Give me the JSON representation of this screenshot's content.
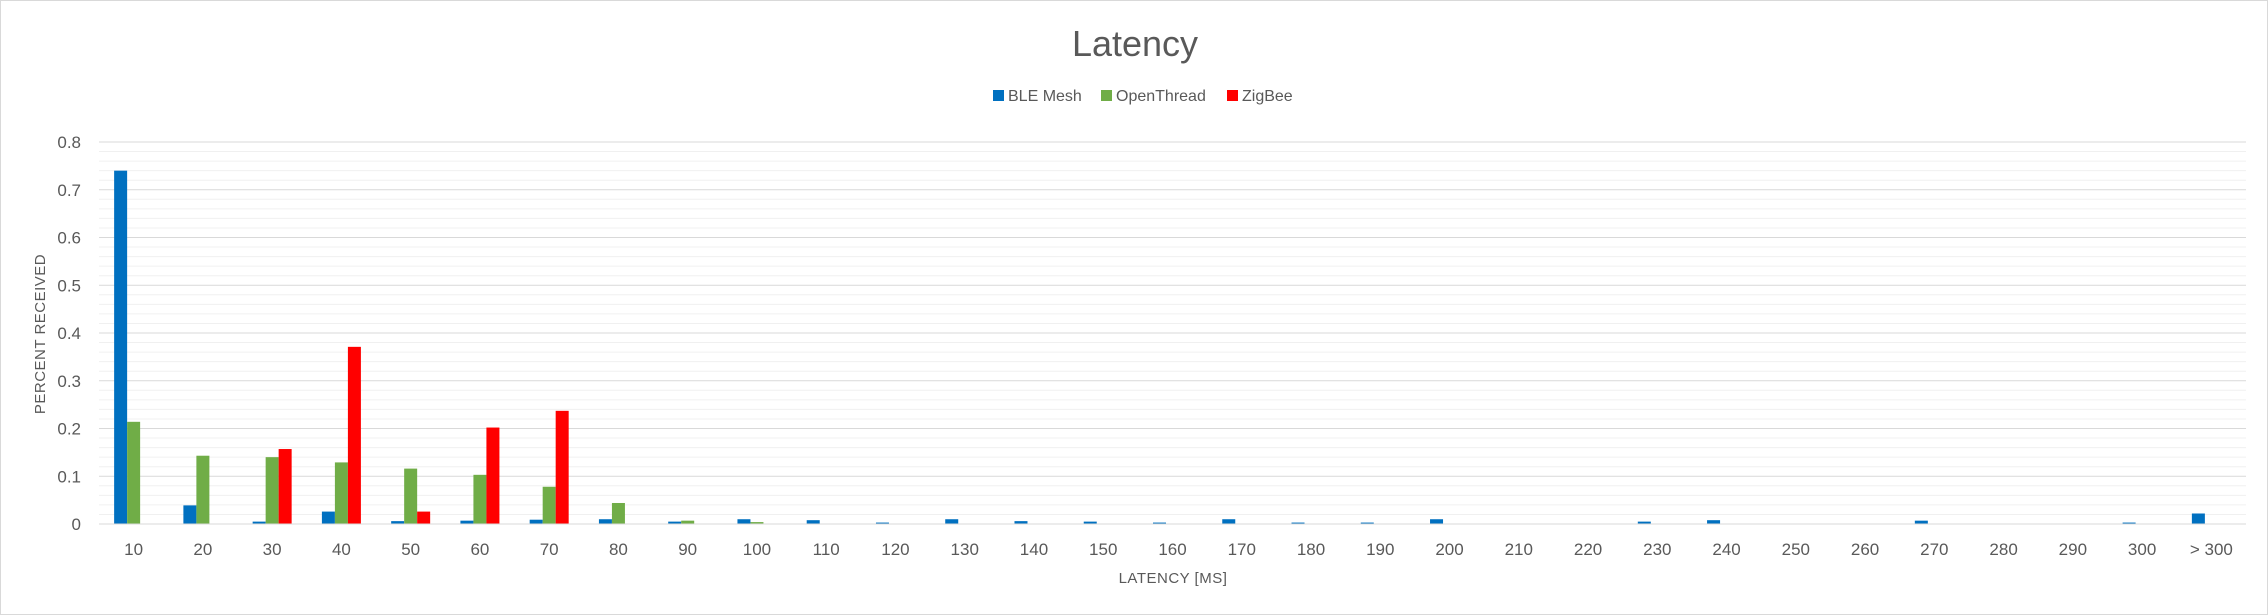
{
  "chart_data": {
    "type": "bar",
    "title": "Latency",
    "xlabel": "LATENCY [MS]",
    "ylabel": "PERCENT RECEIVED",
    "ylim": [
      0,
      0.8
    ],
    "yticks": [
      "0",
      "0.1",
      "0.2",
      "0.3",
      "0.4",
      "0.5",
      "0.6",
      "0.7",
      "0.8"
    ],
    "grid": "horizontal major and minor gridlines",
    "legend_position": "top",
    "categories": [
      "10",
      "20",
      "30",
      "40",
      "50",
      "60",
      "70",
      "80",
      "90",
      "100",
      "110",
      "120",
      "130",
      "140",
      "150",
      "160",
      "170",
      "180",
      "190",
      "200",
      "210",
      "220",
      "230",
      "240",
      "250",
      "260",
      "270",
      "280",
      "290",
      "300",
      "> 300"
    ],
    "series": [
      {
        "name": "BLE Mesh",
        "color": "#0070C0",
        "values": [
          0.74,
          0.039,
          0.005,
          0.026,
          0.006,
          0.007,
          0.009,
          0.01,
          0.005,
          0.01,
          0.008,
          0.003,
          0.01,
          0.006,
          0.005,
          0.003,
          0.01,
          0.003,
          0.003,
          0.01,
          0,
          0,
          0.005,
          0.008,
          0,
          0,
          0.007,
          0,
          0,
          0.003,
          0.022
        ]
      },
      {
        "name": "OpenThread",
        "color": "#70AD47",
        "values": [
          0.214,
          0.143,
          0.14,
          0.129,
          0.116,
          0.103,
          0.078,
          0.044,
          0.007,
          0.004,
          0,
          0,
          0,
          0,
          0,
          0,
          0,
          0,
          0,
          0,
          0,
          0,
          0,
          0,
          0,
          0,
          0,
          0,
          0,
          0,
          0
        ]
      },
      {
        "name": "ZigBee",
        "color": "#FF0000",
        "values": [
          0,
          0,
          0.157,
          0.371,
          0.026,
          0.202,
          0.237,
          0,
          0,
          0,
          0,
          0,
          0,
          0,
          0,
          0,
          0,
          0,
          0,
          0,
          0,
          0,
          0,
          0,
          0,
          0,
          0,
          0,
          0,
          0,
          0
        ]
      }
    ]
  }
}
